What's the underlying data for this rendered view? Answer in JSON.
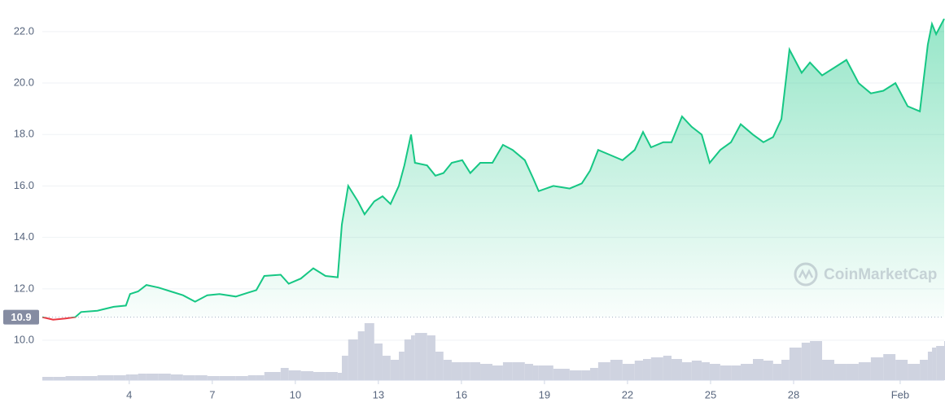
{
  "chart_data": {
    "type": "line",
    "x": [
      0.86,
      1.25,
      1.7,
      2.05,
      2.26,
      2.85,
      3.44,
      3.88,
      4.03,
      4.32,
      4.62,
      5.06,
      5.5,
      5.94,
      6.38,
      6.82,
      7.26,
      7.85,
      8.29,
      8.59,
      8.88,
      9.47,
      9.76,
      10.2,
      10.65,
      11.09,
      11.53,
      11.68,
      11.91,
      12.26,
      12.5,
      12.85,
      13.15,
      13.44,
      13.74,
      13.94,
      14.18,
      14.32,
      14.76,
      15.06,
      15.35,
      15.65,
      16.03,
      16.32,
      16.68,
      17.12,
      17.5,
      17.85,
      18.29,
      18.59,
      18.79,
      19.32,
      19.91,
      20.35,
      20.65,
      20.94,
      21.38,
      21.82,
      22.26,
      22.56,
      22.85,
      23.29,
      23.59,
      23.97,
      24.32,
      24.68,
      24.97,
      25.35,
      25.74,
      26.09,
      26.53,
      26.91,
      27.26,
      27.56,
      27.85,
      28.29,
      28.59,
      29.03,
      29.47,
      29.91,
      30.35,
      30.79,
      31.24,
      31.68,
      32.12,
      32.56,
      32.85,
      33.0,
      33.15,
      33.44
    ],
    "values": [
      10.9,
      10.8,
      10.85,
      10.9,
      11.1,
      11.15,
      11.3,
      11.35,
      11.8,
      11.9,
      12.15,
      12.05,
      11.9,
      11.75,
      11.5,
      11.75,
      11.8,
      11.7,
      11.85,
      11.95,
      12.5,
      12.55,
      12.2,
      12.4,
      12.8,
      12.5,
      12.45,
      14.5,
      16.0,
      15.4,
      14.9,
      15.4,
      15.6,
      15.3,
      16.0,
      16.8,
      18.0,
      16.9,
      16.8,
      16.4,
      16.5,
      16.9,
      17.0,
      16.5,
      16.9,
      16.9,
      17.6,
      17.4,
      17.0,
      16.3,
      15.8,
      16.0,
      15.9,
      16.1,
      16.6,
      17.4,
      17.2,
      17.0,
      17.4,
      18.1,
      17.5,
      17.7,
      17.7,
      18.7,
      18.3,
      18.0,
      16.9,
      17.4,
      17.7,
      18.4,
      18.0,
      17.7,
      17.9,
      18.6,
      21.3,
      20.4,
      20.8,
      20.3,
      20.6,
      20.9,
      20.0,
      19.6,
      19.7,
      20.0,
      19.1,
      18.9,
      21.5,
      22.3,
      21.9,
      22.5
    ],
    "volume": [
      4,
      4,
      5,
      5,
      5,
      6,
      6,
      7,
      7,
      8,
      8,
      8,
      7,
      6,
      6,
      5,
      5,
      5,
      6,
      6,
      10,
      15,
      12,
      11,
      10,
      10,
      9,
      30,
      50,
      60,
      70,
      45,
      30,
      25,
      35,
      50,
      55,
      58,
      55,
      35,
      25,
      22,
      22,
      22,
      20,
      18,
      22,
      22,
      20,
      18,
      18,
      14,
      12,
      12,
      15,
      22,
      25,
      20,
      24,
      26,
      28,
      30,
      26,
      22,
      24,
      22,
      20,
      18,
      18,
      20,
      26,
      24,
      20,
      25,
      40,
      46,
      48,
      25,
      20,
      20,
      22,
      28,
      32,
      25,
      20,
      25,
      35,
      40,
      42,
      48
    ],
    "color": "#16c784",
    "below_color": "#ea3943",
    "volume_color": "#cfd3e0",
    "baseline": 10.9,
    "xlim": [
      0.86,
      33.44
    ],
    "xticks": [
      {
        "value": 4,
        "label": "4"
      },
      {
        "value": 7,
        "label": "7"
      },
      {
        "value": 10,
        "label": "10"
      },
      {
        "value": 13,
        "label": "13"
      },
      {
        "value": 16,
        "label": "16"
      },
      {
        "value": 19,
        "label": "19"
      },
      {
        "value": 22,
        "label": "22"
      },
      {
        "value": 25,
        "label": "25"
      },
      {
        "value": 28,
        "label": "28"
      },
      {
        "value": 31.85,
        "label": "Feb"
      }
    ],
    "ylim": [
      8.45,
      23.23
    ],
    "yticks": [
      {
        "value": 10,
        "label": "10.0"
      },
      {
        "value": 12,
        "label": "12.0"
      },
      {
        "value": 14,
        "label": "14.0"
      },
      {
        "value": 16,
        "label": "16.0"
      },
      {
        "value": 18,
        "label": "18.0"
      },
      {
        "value": 20,
        "label": "20.0"
      },
      {
        "value": 22,
        "label": "22.0"
      }
    ],
    "vlim": [
      0,
      100
    ],
    "grid": true,
    "watermark": "CoinMarketCap"
  }
}
